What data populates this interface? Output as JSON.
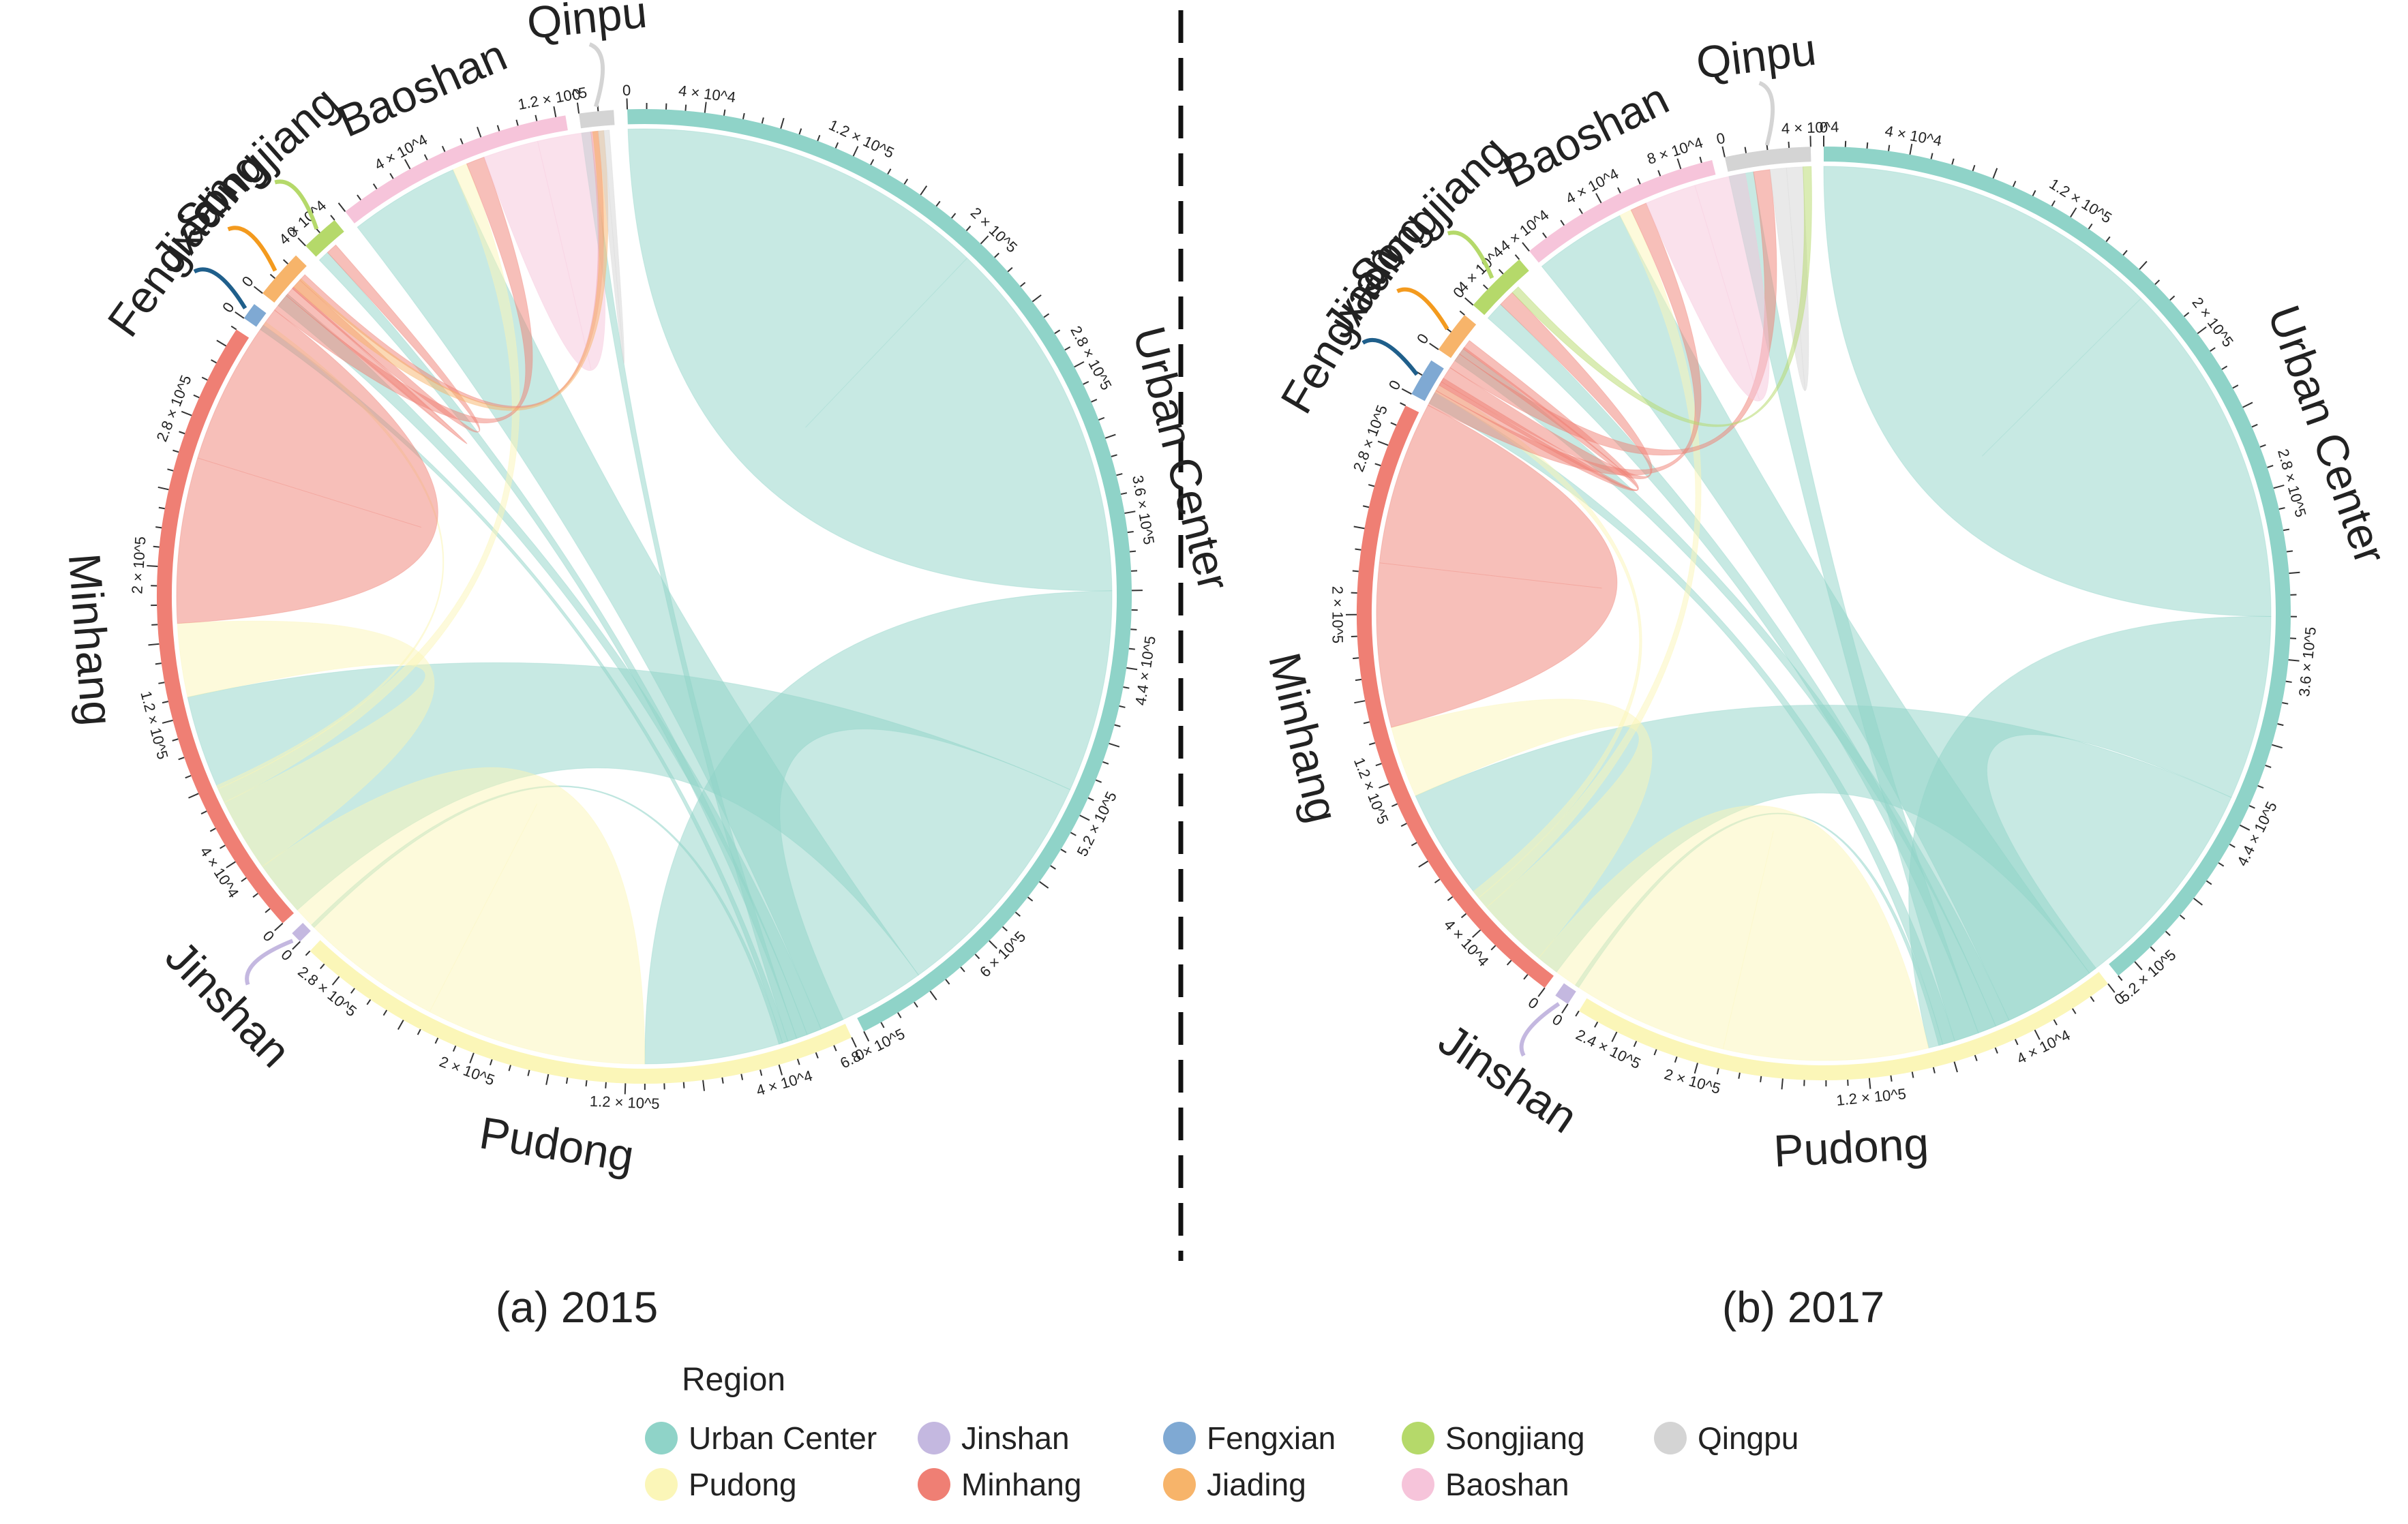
{
  "regions": [
    {
      "key": "urban",
      "name": "Urban Center",
      "color": "#8fd3c8"
    },
    {
      "key": "pudong",
      "name": "Pudong",
      "color": "#fbf6b8"
    },
    {
      "key": "jinshan",
      "name": "Jinshan",
      "color": "#c4b8e0"
    },
    {
      "key": "minhang",
      "name": "Minhang",
      "color": "#ef7f74"
    },
    {
      "key": "fengxian",
      "name": "Fengxian",
      "color": "#7fa9d3"
    },
    {
      "key": "jiading",
      "name": "Jiading",
      "color": "#f7b46a"
    },
    {
      "key": "songjiang",
      "name": "Songjiang",
      "color": "#b5d96a"
    },
    {
      "key": "baoshan",
      "name": "Baoshan",
      "color": "#f6c4da"
    },
    {
      "key": "qingpu",
      "name": "Qingpu",
      "color": "#d4d4d4"
    }
  ],
  "chart_data": [
    {
      "type": "chord",
      "title": "(a) 2015",
      "sectors": [
        {
          "name": "Urban Center",
          "key": "urban",
          "total": 680000,
          "tick_labels": [
            "0",
            "4 × 10^4",
            "1.2 × 10^5",
            "2 × 10^5",
            "2.8 × 10^5",
            "3.6 × 10^5",
            "4.4 × 10^5",
            "5.2 × 10^5",
            "6 × 10^5",
            "6.8 × 10^5"
          ],
          "tick_values": [
            0,
            40000,
            120000,
            200000,
            280000,
            360000,
            440000,
            520000,
            600000,
            680000
          ]
        },
        {
          "name": "Pudong",
          "key": "pudong",
          "total": 300000,
          "tick_labels": [
            "0",
            "4 × 10^4",
            "1.2 × 10^5",
            "2 × 10^5",
            "2.8 × 10^5"
          ],
          "tick_values": [
            0,
            40000,
            120000,
            200000,
            280000
          ]
        },
        {
          "name": "Jinshan",
          "key": "jinshan",
          "total": 6000,
          "tick_labels": [
            "0"
          ],
          "tick_values": [
            0
          ]
        },
        {
          "name": "Minhang",
          "key": "minhang",
          "total": 330000,
          "tick_labels": [
            "0",
            "4 × 10^4",
            "1.2 × 10^5",
            "2 × 10^5",
            "2.8 × 10^5"
          ],
          "tick_values": [
            0,
            40000,
            120000,
            200000,
            280000
          ]
        },
        {
          "name": "Fengxian",
          "key": "fengxian",
          "total": 9000,
          "tick_labels": [
            "0"
          ],
          "tick_values": [
            0
          ]
        },
        {
          "name": "Jiading",
          "key": "jiading",
          "total": 26000,
          "tick_labels": [
            "0",
            "4 × 10^4"
          ],
          "tick_values": [
            0,
            40000
          ]
        },
        {
          "name": "Songjiang",
          "key": "songjiang",
          "total": 20000,
          "tick_labels": [
            "0"
          ],
          "tick_values": [
            0
          ]
        },
        {
          "name": "Baoshan",
          "key": "baoshan",
          "total": 125000,
          "tick_labels": [
            "4 × 10^4",
            "1.2 × 10^5"
          ],
          "tick_values": [
            40000,
            120000
          ]
        },
        {
          "name": "Qinpu",
          "key": "qingpu",
          "total": 18000,
          "tick_labels": [
            "0"
          ],
          "tick_values": [
            0
          ]
        }
      ],
      "flows": [
        {
          "from": "urban",
          "to": "urban",
          "value": 200000
        },
        {
          "from": "urban",
          "to": "pudong",
          "value": 110000
        },
        {
          "from": "urban",
          "to": "minhang",
          "value": 130000
        },
        {
          "from": "urban",
          "to": "baoshan",
          "value": 60000
        },
        {
          "from": "urban",
          "to": "jiading",
          "value": 8000
        },
        {
          "from": "urban",
          "to": "songjiang",
          "value": 6000
        },
        {
          "from": "urban",
          "to": "qingpu",
          "value": 5000
        },
        {
          "from": "urban",
          "to": "fengxian",
          "value": 3000
        },
        {
          "from": "urban",
          "to": "jinshan",
          "value": 2000
        },
        {
          "from": "pudong",
          "to": "pudong",
          "value": 120000
        },
        {
          "from": "pudong",
          "to": "minhang",
          "value": 40000
        },
        {
          "from": "pudong",
          "to": "baoshan",
          "value": 8000
        },
        {
          "from": "pudong",
          "to": "fengxian",
          "value": 2000
        },
        {
          "from": "minhang",
          "to": "minhang",
          "value": 90000
        },
        {
          "from": "minhang",
          "to": "baoshan",
          "value": 10000
        },
        {
          "from": "minhang",
          "to": "jiading",
          "value": 5000
        },
        {
          "from": "minhang",
          "to": "songjiang",
          "value": 6000
        },
        {
          "from": "minhang",
          "to": "qingpu",
          "value": 4000
        },
        {
          "from": "baoshan",
          "to": "baoshan",
          "value": 30000
        },
        {
          "from": "jiading",
          "to": "baoshan",
          "value": 6000
        },
        {
          "from": "qingpu",
          "to": "qingpu",
          "value": 3000
        }
      ]
    },
    {
      "type": "chord",
      "title": "(b) 2017",
      "sectors": [
        {
          "name": "Urban Center",
          "key": "urban",
          "total": 530000,
          "tick_labels": [
            "0",
            "4 × 10^4",
            "1.2 × 10^5",
            "2 × 10^5",
            "2.8 × 10^5",
            "3.6 × 10^5",
            "4.4 × 10^5",
            "5.2 × 10^5"
          ],
          "tick_values": [
            0,
            40000,
            120000,
            200000,
            280000,
            360000,
            440000,
            520000
          ]
        },
        {
          "name": "Pudong",
          "key": "pudong",
          "total": 260000,
          "tick_labels": [
            "0",
            "4 × 10^4",
            "1.2 × 10^5",
            "2 × 10^5",
            "2.4 × 10^5"
          ],
          "tick_values": [
            0,
            40000,
            120000,
            200000,
            240000
          ]
        },
        {
          "name": "Jinshan",
          "key": "jinshan",
          "total": 7000,
          "tick_labels": [
            "0"
          ],
          "tick_values": [
            0
          ]
        },
        {
          "name": "Minhang",
          "key": "minhang",
          "total": 300000,
          "tick_labels": [
            "0",
            "4 × 10^4",
            "1.2 × 10^5",
            "2 × 10^5",
            "2.8 × 10^5"
          ],
          "tick_values": [
            0,
            40000,
            120000,
            200000,
            280000
          ]
        },
        {
          "name": "Fengxian",
          "key": "fengxian",
          "total": 18000,
          "tick_labels": [
            "0"
          ],
          "tick_values": [
            0
          ]
        },
        {
          "name": "Jiading",
          "key": "jiading",
          "total": 20000,
          "tick_labels": [
            "0",
            "4 × 10^4"
          ],
          "tick_values": [
            0,
            40000
          ]
        },
        {
          "name": "Songjiang",
          "key": "songjiang",
          "total": 30000,
          "tick_labels": [
            "0",
            "4 × 10^4"
          ],
          "tick_values": [
            0,
            40000
          ]
        },
        {
          "name": "Baoshan",
          "key": "baoshan",
          "total": 95000,
          "tick_labels": [
            "4 × 10^4",
            "8 × 10^4"
          ],
          "tick_values": [
            40000,
            80000
          ]
        },
        {
          "name": "Qinpu",
          "key": "qingpu",
          "total": 40000,
          "tick_labels": [
            "0",
            "4 × 10^4"
          ],
          "tick_values": [
            0,
            40000
          ]
        }
      ],
      "flows": [
        {
          "from": "urban",
          "to": "urban",
          "value": 170000
        },
        {
          "from": "urban",
          "to": "pudong",
          "value": 90000
        },
        {
          "from": "urban",
          "to": "minhang",
          "value": 110000
        },
        {
          "from": "urban",
          "to": "baoshan",
          "value": 45000
        },
        {
          "from": "urban",
          "to": "jiading",
          "value": 7000
        },
        {
          "from": "urban",
          "to": "songjiang",
          "value": 9000
        },
        {
          "from": "urban",
          "to": "qingpu",
          "value": 12000
        },
        {
          "from": "urban",
          "to": "fengxian",
          "value": 6000
        },
        {
          "from": "urban",
          "to": "jinshan",
          "value": 2000
        },
        {
          "from": "pudong",
          "to": "pudong",
          "value": 100000
        },
        {
          "from": "pudong",
          "to": "minhang",
          "value": 35000
        },
        {
          "from": "pudong",
          "to": "baoshan",
          "value": 6000
        },
        {
          "from": "pudong",
          "to": "fengxian",
          "value": 4000
        },
        {
          "from": "minhang",
          "to": "minhang",
          "value": 80000
        },
        {
          "from": "minhang",
          "to": "baoshan",
          "value": 8000
        },
        {
          "from": "minhang",
          "to": "jiading",
          "value": 5000
        },
        {
          "from": "minhang",
          "to": "songjiang",
          "value": 8000
        },
        {
          "from": "minhang",
          "to": "qingpu",
          "value": 8000
        },
        {
          "from": "minhang",
          "to": "fengxian",
          "value": 4000
        },
        {
          "from": "baoshan",
          "to": "baoshan",
          "value": 25000
        },
        {
          "from": "qingpu",
          "to": "qingpu",
          "value": 8000
        },
        {
          "from": "songjiang",
          "to": "qingpu",
          "value": 4000
        }
      ]
    }
  ],
  "legend": {
    "title": "Region",
    "items": [
      {
        "key": "urban",
        "label": "Urban Center"
      },
      {
        "key": "pudong",
        "label": "Pudong"
      },
      {
        "key": "jinshan",
        "label": "Jinshan"
      },
      {
        "key": "minhang",
        "label": "Minhang"
      },
      {
        "key": "fengxian",
        "label": "Fengxian"
      },
      {
        "key": "jiading",
        "label": "Jiading"
      },
      {
        "key": "songjiang",
        "label": "Songjiang"
      },
      {
        "key": "baoshan",
        "label": "Baoshan"
      },
      {
        "key": "qingpu",
        "label": "Qingpu"
      }
    ]
  }
}
